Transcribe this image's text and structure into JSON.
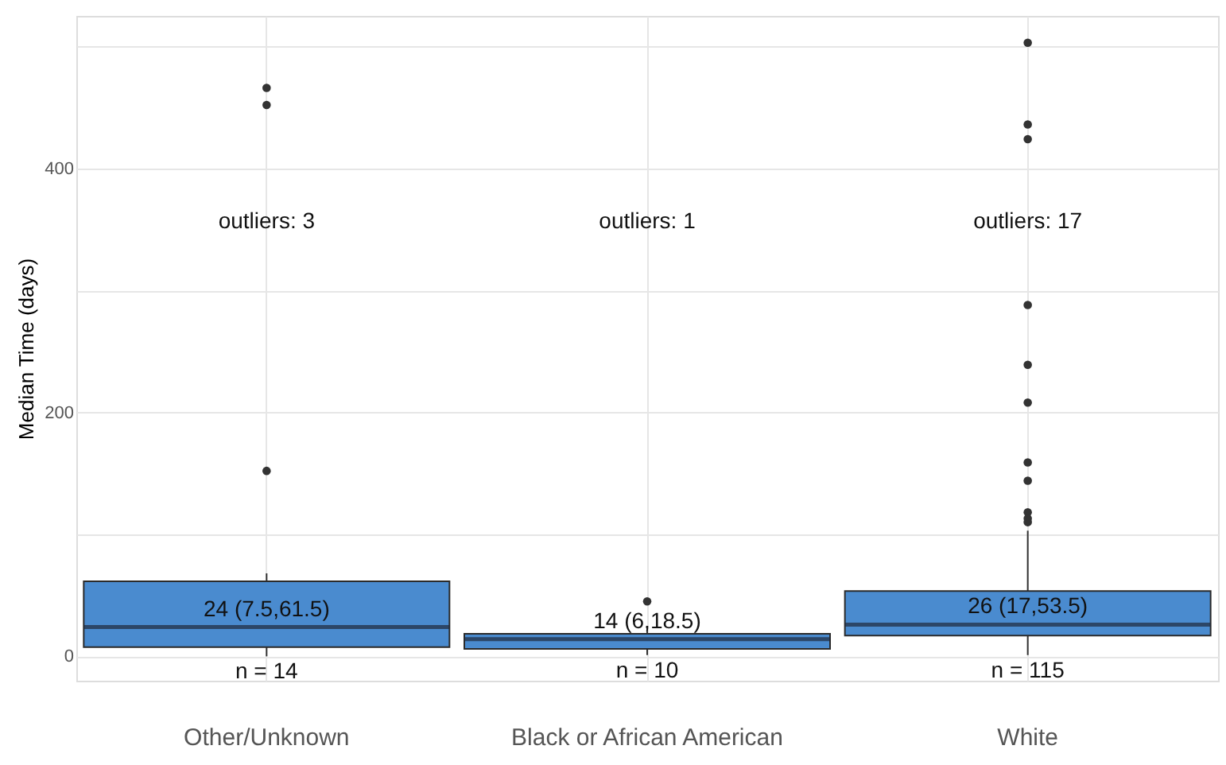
{
  "chart_data": {
    "type": "box",
    "ylabel": "Median Time (days)",
    "categories": [
      "Other/Unknown",
      "Black or African American",
      "White"
    ],
    "boxes": [
      {
        "low": 0,
        "q1": 7.5,
        "median": 24,
        "q3": 61.5,
        "high": 68,
        "outliers": [
          152,
          452,
          466
        ]
      },
      {
        "low": 1,
        "q1": 6,
        "median": 14,
        "q3": 18.5,
        "high": 24,
        "outliers": [
          45
        ]
      },
      {
        "low": 1,
        "q1": 17,
        "median": 26,
        "q3": 53.5,
        "high": 103,
        "outliers": [
          503,
          436,
          424,
          288,
          239,
          208,
          159,
          144,
          118,
          113,
          110
        ]
      }
    ],
    "color": "#4a8bcf",
    "ylim": [
      -20,
      525
    ],
    "yticks": [
      0,
      {
        "value": 100,
        "label": null
      },
      200,
      {
        "value": 300,
        "label": null
      },
      400,
      {
        "value": 500,
        "label": null
      }
    ],
    "grid": true,
    "annotations": [
      "outliers: 3",
      "outliers: 1",
      "outliers: 17",
      "24 (7.5,61.5)",
      "14 (6,18.5)",
      "26 (17,53.5)",
      "n = 14",
      "n = 10",
      "n = 115"
    ]
  }
}
